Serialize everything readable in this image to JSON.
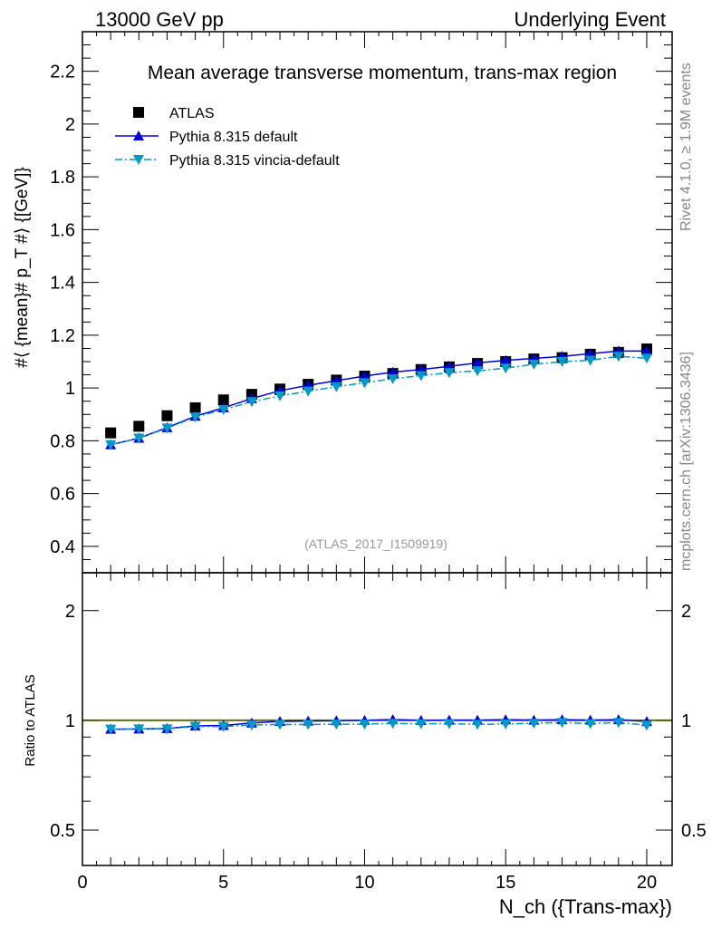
{
  "header": {
    "left": "13000 GeV pp",
    "right": "Underlying Event"
  },
  "side": {
    "top": "Rivet 4.1.0, ≥ 1.9M events",
    "bottom": "mcplots.cern.ch [arXiv:1306.3436]"
  },
  "chart_data": [
    {
      "type": "scatter",
      "title": "Mean average transverse momentum, trans-max region",
      "ylabel": "#⟨ {mean}# p_T #⟩ {[GeV]}",
      "xlabel": "N_ch ({Trans-max})",
      "xlim": [
        0,
        20.9
      ],
      "ylim": [
        0.3,
        2.35
      ],
      "yticks": [
        0.4,
        0.6,
        0.8,
        1,
        1.2,
        1.4,
        1.6,
        1.8,
        2,
        2.2
      ],
      "xticks": [
        0,
        5,
        10,
        15,
        20
      ],
      "watermark": "(ATLAS_2017_I1509919)",
      "legend_position": "top-left",
      "x": [
        1,
        2,
        3,
        4,
        5,
        6,
        7,
        8,
        9,
        10,
        11,
        12,
        13,
        14,
        15,
        16,
        17,
        18,
        19,
        20
      ],
      "series": [
        {
          "name": "ATLAS",
          "color": "#000000",
          "marker": "square",
          "values": [
            0.83,
            0.855,
            0.895,
            0.925,
            0.955,
            0.976,
            0.996,
            1.014,
            1.03,
            1.045,
            1.055,
            1.07,
            1.08,
            1.093,
            1.1,
            1.11,
            1.115,
            1.128,
            1.135,
            1.148
          ]
        },
        {
          "name": "Pythia 8.315 default",
          "color": "#0000dd",
          "marker": "triangle-up",
          "line": "solid",
          "values": [
            0.785,
            0.81,
            0.85,
            0.893,
            0.925,
            0.96,
            0.99,
            1.01,
            1.028,
            1.045,
            1.06,
            1.07,
            1.082,
            1.095,
            1.105,
            1.112,
            1.12,
            1.13,
            1.14,
            1.14
          ]
        },
        {
          "name": "Pythia 8.315 vincia-default",
          "color": "#0099cc",
          "marker": "triangle-down",
          "line": "dashdot",
          "values": [
            0.785,
            0.81,
            0.848,
            0.89,
            0.918,
            0.948,
            0.97,
            0.988,
            1.005,
            1.02,
            1.035,
            1.047,
            1.058,
            1.065,
            1.075,
            1.09,
            1.1,
            1.105,
            1.12,
            1.113
          ]
        }
      ]
    },
    {
      "type": "line",
      "ylabel": "Ratio to ATLAS",
      "yscale": "log",
      "ylim": [
        0.4,
        2.54
      ],
      "yticks": [
        0.5,
        1,
        2
      ],
      "ytick_labels": [
        "0.5",
        "1",
        "2"
      ],
      "reference": "ATLAS",
      "band_color": "#ddee55"
    }
  ]
}
